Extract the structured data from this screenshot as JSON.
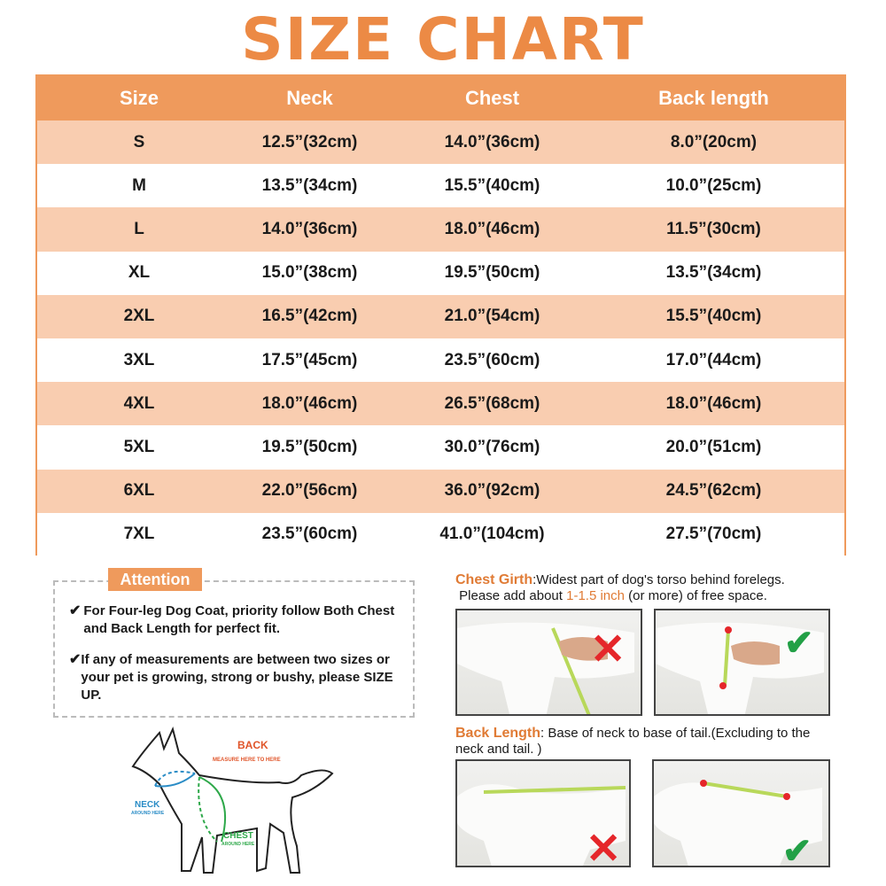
{
  "title": "SIZE CHART",
  "table": {
    "headers": [
      "Size",
      "Neck",
      "Chest",
      "Back length"
    ],
    "rows": [
      [
        "S",
        "12.5”(32cm)",
        "14.0”(36cm)",
        "8.0”(20cm)"
      ],
      [
        "M",
        "13.5”(34cm)",
        "15.5”(40cm)",
        "10.0”(25cm)"
      ],
      [
        "L",
        "14.0”(36cm)",
        "18.0”(46cm)",
        "11.5”(30cm)"
      ],
      [
        "XL",
        "15.0”(38cm)",
        "19.5”(50cm)",
        "13.5”(34cm)"
      ],
      [
        "2XL",
        "16.5”(42cm)",
        "21.0”(54cm)",
        "15.5”(40cm)"
      ],
      [
        "3XL",
        "17.5”(45cm)",
        "23.5”(60cm)",
        "17.0”(44cm)"
      ],
      [
        "4XL",
        "18.0”(46cm)",
        "26.5”(68cm)",
        "18.0”(46cm)"
      ],
      [
        "5XL",
        "19.5”(50cm)",
        "30.0”(76cm)",
        "20.0”(51cm)"
      ],
      [
        "6XL",
        "22.0”(56cm)",
        "36.0”(92cm)",
        "24.5”(62cm)"
      ],
      [
        "7XL",
        "23.5”(60cm)",
        "41.0”(104cm)",
        "27.5”(70cm)"
      ]
    ]
  },
  "attention": {
    "label": "Attention",
    "items": [
      "For Four-leg Dog Coat, priority follow Both Chest and Back Length for perfect fit.",
      "If any of measurements are between two sizes or your pet is growing, strong or bushy, please SIZE UP."
    ]
  },
  "diagram": {
    "back": "BACK",
    "back_sub": "MEASURE HERE TO HERE",
    "neck": "NECK",
    "neck_sub": "AROUND HERE",
    "chest": "CHEST",
    "chest_sub": "AROUND HERE"
  },
  "chest_girth": {
    "label": "Chest Girth",
    "text1": ":Widest part of dog's torso behind forelegs.",
    "text2a": "Please add about ",
    "highlight": "1-1.5 inch",
    "text2b": " (or more) of free space."
  },
  "back_length": {
    "label": "Back Length",
    "text": ": Base of neck to base of tail.(Excluding to the neck and tail. )"
  },
  "colors": {
    "accent": "#ec8a45",
    "header": "#ef9a5c",
    "stripe": "#f9cdb0",
    "correct": "#22a046",
    "wrong": "#e5262a"
  }
}
